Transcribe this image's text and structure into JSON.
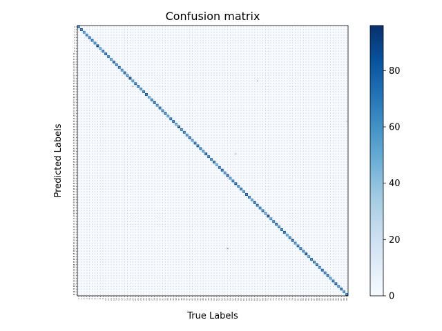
{
  "chart_data": {
    "type": "heatmap",
    "title": "Confusion matrix",
    "xlabel": "True Labels",
    "ylabel": "Predicted Labels",
    "n_classes": 100,
    "labels": [
      "0",
      "1",
      "2",
      "3",
      "4",
      "5",
      "6",
      "7",
      "8",
      "9",
      "10",
      "11",
      "12",
      "13",
      "14",
      "15",
      "16",
      "17",
      "18",
      "19",
      "20",
      "21",
      "22",
      "23",
      "24",
      "25",
      "26",
      "27",
      "28",
      "29",
      "30",
      "31",
      "32",
      "33",
      "34",
      "35",
      "36",
      "37",
      "38",
      "39",
      "40",
      "41",
      "42",
      "43",
      "44",
      "45",
      "46",
      "47",
      "48",
      "49",
      "50",
      "51",
      "52",
      "53",
      "54",
      "55",
      "56",
      "57",
      "58",
      "59",
      "60",
      "61",
      "62",
      "63",
      "64",
      "65",
      "66",
      "67",
      "68",
      "69",
      "70",
      "71",
      "72",
      "73",
      "74",
      "75",
      "76",
      "77",
      "78",
      "79",
      "80",
      "81",
      "82",
      "83",
      "84",
      "85",
      "86",
      "87",
      "88",
      "89",
      "90",
      "91",
      "92",
      "93",
      "94",
      "95",
      "96",
      "97",
      "98",
      "99"
    ],
    "diagonal": [
      72,
      88,
      65,
      70,
      80,
      74,
      68,
      90,
      60,
      76,
      82,
      70,
      64,
      86,
      72,
      78,
      66,
      84,
      70,
      92,
      62,
      76,
      80,
      68,
      74,
      86,
      58,
      72,
      88,
      66,
      78,
      70,
      84,
      60,
      76,
      82,
      64,
      90,
      70,
      74,
      68,
      86,
      62,
      78,
      80,
      72,
      66,
      88,
      74,
      70,
      84,
      60,
      76,
      82,
      68,
      90,
      64,
      72,
      86,
      70,
      78,
      66,
      84,
      74,
      62,
      88,
      76,
      70,
      80,
      68,
      92,
      64,
      74,
      86,
      70,
      78,
      82,
      60,
      76,
      88,
      66,
      72,
      84,
      70,
      90,
      64,
      78,
      74,
      86,
      68,
      80,
      72,
      88,
      62,
      76,
      84,
      70,
      82,
      66,
      74
    ],
    "off_diagonal_highlights": [
      {
        "true": 20,
        "pred": 22,
        "value": 8
      },
      {
        "true": 55,
        "pred": 82,
        "value": 10
      },
      {
        "true": 66,
        "pred": 20,
        "value": 6
      },
      {
        "true": 99,
        "pred": 35,
        "value": 7
      },
      {
        "true": 58,
        "pred": 47,
        "value": 9
      }
    ],
    "colorbar": {
      "colormap": "Blues",
      "min": 0,
      "max": 96,
      "ticks": [
        0,
        20,
        40,
        60,
        80
      ]
    }
  }
}
